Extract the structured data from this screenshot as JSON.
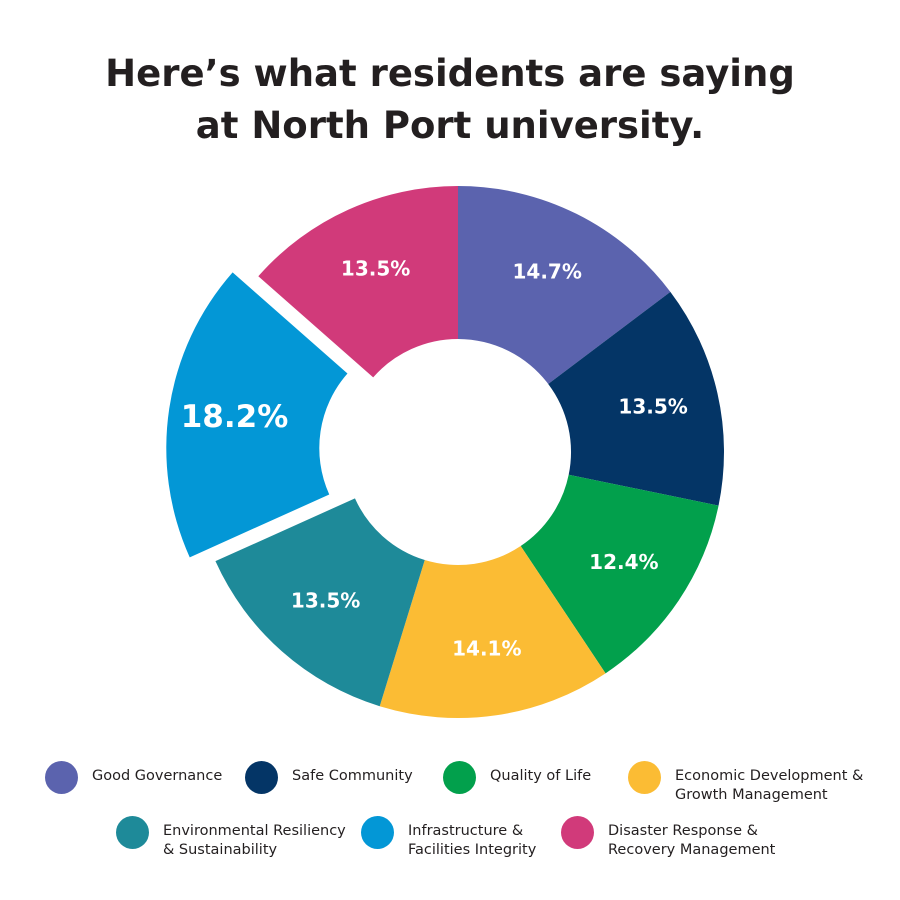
{
  "chart_data": {
    "type": "donut",
    "title": "Here’s what residents are saying\nat North Port university.",
    "categories": [
      "Good Governance",
      "Safe Community",
      "Quality of Life",
      "Economic Development &\nGrowth Management",
      "Environmental Resiliency\n& Sustainability",
      "Infrastructure &\nFacilities Integrity",
      "Disaster Response &\nRecovery Management"
    ],
    "values": [
      14.7,
      13.5,
      12.4,
      14.1,
      13.5,
      18.2,
      13.5
    ],
    "value_labels": [
      "14.7%",
      "13.5%",
      "12.4%",
      "14.1%",
      "13.5%",
      "18.2%",
      "13.5%"
    ],
    "colors": [
      "#5b63ae",
      "#043566",
      "#02a04c",
      "#fbbc34",
      "#1e8a99",
      "#0397d6",
      "#d13a7a"
    ],
    "explode": 5
  }
}
